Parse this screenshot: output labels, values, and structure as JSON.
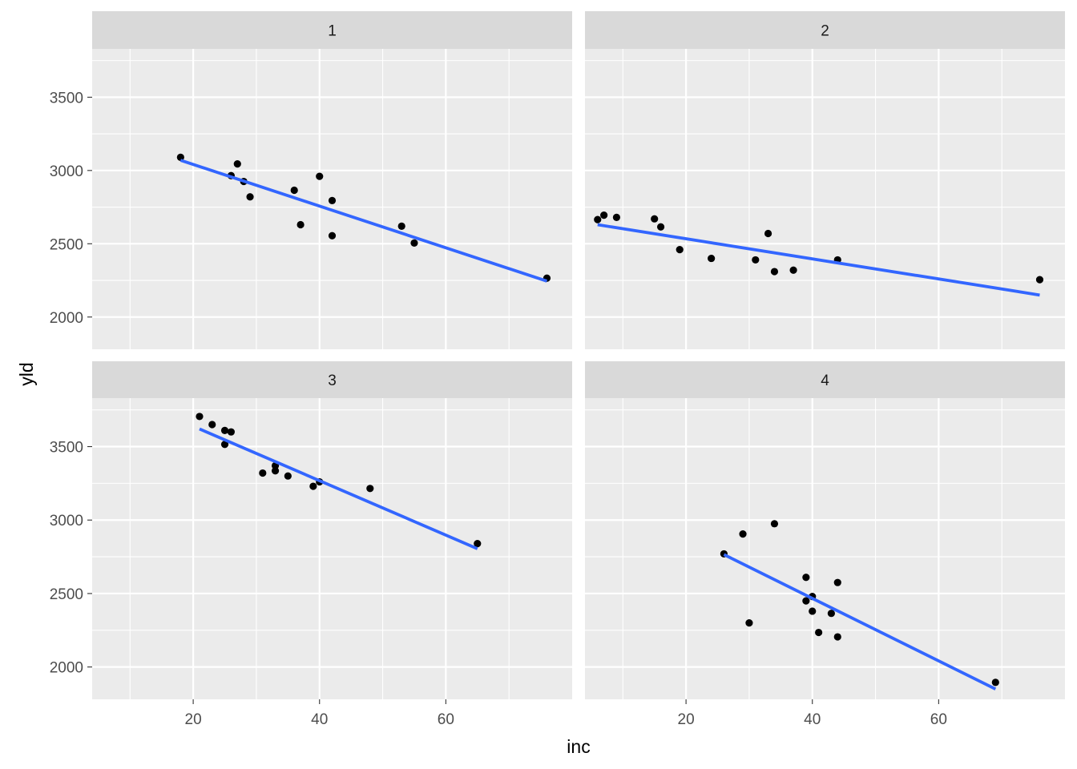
{
  "chart_data": {
    "type": "scatter",
    "facet_layout": "2x2 grid, shared axes",
    "xlabel": "inc",
    "ylabel": "yld",
    "xlim": [
      4,
      80
    ],
    "ylim": [
      1780,
      3830
    ],
    "x_ticks": [
      20,
      40,
      60
    ],
    "y_ticks": [
      2000,
      2500,
      3000,
      3500
    ],
    "x_tick_labels": [
      "20",
      "40",
      "60"
    ],
    "y_tick_labels": [
      "2000",
      "2500",
      "3000",
      "3500"
    ],
    "grid": true,
    "panel_background": "#ebebeb",
    "strip_background": "#d9d9d9",
    "point_color": "#000000",
    "line_color": "#3366ff",
    "panels": [
      {
        "label": "1",
        "points": [
          {
            "x": 18,
            "y": 3090
          },
          {
            "x": 26,
            "y": 2965
          },
          {
            "x": 27,
            "y": 3045
          },
          {
            "x": 28,
            "y": 2925
          },
          {
            "x": 29,
            "y": 2820
          },
          {
            "x": 36,
            "y": 2865
          },
          {
            "x": 37,
            "y": 2630
          },
          {
            "x": 40,
            "y": 2960
          },
          {
            "x": 42,
            "y": 2795
          },
          {
            "x": 42,
            "y": 2555
          },
          {
            "x": 53,
            "y": 2620
          },
          {
            "x": 55,
            "y": 2505
          },
          {
            "x": 76,
            "y": 2265
          }
        ],
        "fit": {
          "x1": 18,
          "y1": 3070,
          "x2": 76,
          "y2": 2245
        }
      },
      {
        "label": "2",
        "points": [
          {
            "x": 6,
            "y": 2665
          },
          {
            "x": 7,
            "y": 2695
          },
          {
            "x": 9,
            "y": 2680
          },
          {
            "x": 15,
            "y": 2670
          },
          {
            "x": 16,
            "y": 2615
          },
          {
            "x": 19,
            "y": 2460
          },
          {
            "x": 24,
            "y": 2400
          },
          {
            "x": 31,
            "y": 2390
          },
          {
            "x": 33,
            "y": 2570
          },
          {
            "x": 34,
            "y": 2310
          },
          {
            "x": 37,
            "y": 2320
          },
          {
            "x": 44,
            "y": 2390
          },
          {
            "x": 76,
            "y": 2255
          }
        ],
        "fit": {
          "x1": 6,
          "y1": 2630,
          "x2": 76,
          "y2": 2150
        }
      },
      {
        "label": "3",
        "points": [
          {
            "x": 21,
            "y": 3705
          },
          {
            "x": 23,
            "y": 3650
          },
          {
            "x": 25,
            "y": 3610
          },
          {
            "x": 25,
            "y": 3515
          },
          {
            "x": 26,
            "y": 3600
          },
          {
            "x": 31,
            "y": 3320
          },
          {
            "x": 33,
            "y": 3370
          },
          {
            "x": 33,
            "y": 3335
          },
          {
            "x": 35,
            "y": 3300
          },
          {
            "x": 39,
            "y": 3230
          },
          {
            "x": 40,
            "y": 3260
          },
          {
            "x": 48,
            "y": 3215
          },
          {
            "x": 65,
            "y": 2840
          }
        ],
        "fit": {
          "x1": 21,
          "y1": 3620,
          "x2": 65,
          "y2": 2805
        }
      },
      {
        "label": "4",
        "points": [
          {
            "x": 26,
            "y": 2770
          },
          {
            "x": 29,
            "y": 2905
          },
          {
            "x": 30,
            "y": 2300
          },
          {
            "x": 34,
            "y": 2975
          },
          {
            "x": 39,
            "y": 2610
          },
          {
            "x": 39,
            "y": 2450
          },
          {
            "x": 40,
            "y": 2380
          },
          {
            "x": 40,
            "y": 2480
          },
          {
            "x": 41,
            "y": 2235
          },
          {
            "x": 43,
            "y": 2365
          },
          {
            "x": 44,
            "y": 2575
          },
          {
            "x": 44,
            "y": 2205
          },
          {
            "x": 69,
            "y": 1895
          }
        ],
        "fit": {
          "x1": 26,
          "y1": 2765,
          "x2": 69,
          "y2": 1850
        }
      }
    ]
  }
}
